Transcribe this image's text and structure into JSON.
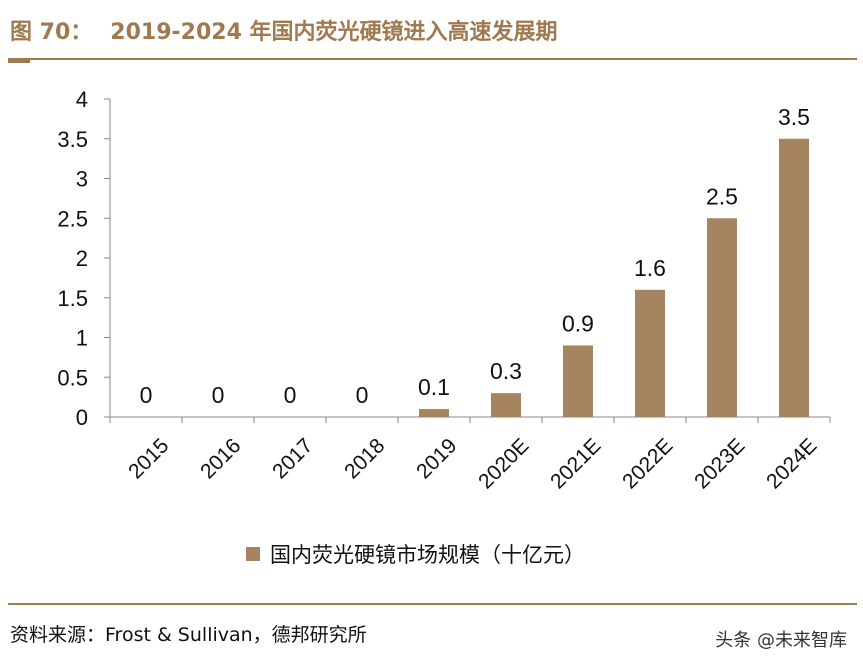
{
  "figure": {
    "number": "图 70：",
    "title": "2019-2024 年国内荧光硬镜进入高速发展期"
  },
  "chart_data": {
    "type": "bar",
    "categories": [
      "2015",
      "2016",
      "2017",
      "2018",
      "2019",
      "2020E",
      "2021E",
      "2022E",
      "2023E",
      "2024E"
    ],
    "series": [
      {
        "name": "国内荧光硬镜市场规模（十亿元）",
        "values": [
          0,
          0,
          0,
          0,
          0.1,
          0.3,
          0.9,
          1.6,
          2.5,
          3.5
        ],
        "labels": [
          "0",
          "0",
          "0",
          "0",
          "0.1",
          "0.3",
          "0.9",
          "1.6",
          "2.5",
          "3.5"
        ]
      }
    ],
    "yticks": [
      0,
      0.5,
      1,
      1.5,
      2,
      2.5,
      3,
      3.5,
      4
    ],
    "ytick_labels": [
      "0",
      "0.5",
      "1",
      "1.5",
      "2",
      "2.5",
      "3",
      "3.5",
      "4"
    ],
    "ylim": [
      0,
      4
    ],
    "bar_color": "#a5845f",
    "grid": false,
    "legend_position": "bottom"
  },
  "legend": {
    "label": "国内荧光硬镜市场规模（十亿元）"
  },
  "source": "资料来源：Frost & Sullivan，德邦研究所",
  "watermark": "头条 @未来智库",
  "colors": {
    "accent": "#a07a4e",
    "bar": "#a5845f"
  }
}
